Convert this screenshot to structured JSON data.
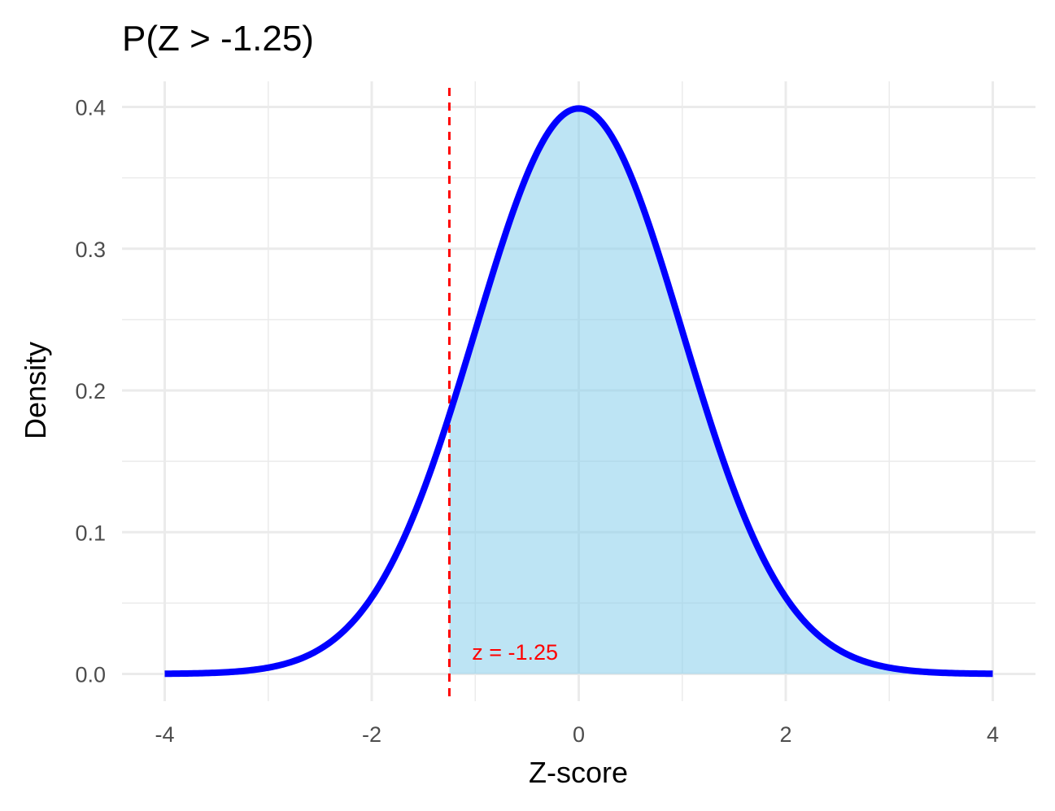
{
  "chart_data": {
    "type": "area",
    "title": "P(Z > -1.25)",
    "xlabel": "Z-score",
    "ylabel": "Density",
    "xlim": [
      -4,
      4
    ],
    "ylim": [
      0,
      0.4
    ],
    "x_ticks": [
      "-4",
      "-2",
      "0",
      "2",
      "4"
    ],
    "y_ticks": [
      "0.0",
      "0.1",
      "0.2",
      "0.3",
      "0.4"
    ],
    "grid": true,
    "legend": "none",
    "series": [
      {
        "curve": "standard normal density",
        "x": [
          -4.0,
          -3.5,
          -3.0,
          -2.5,
          -2.0,
          -1.5,
          -1.25,
          -1.0,
          -0.5,
          0.0,
          0.5,
          1.0,
          1.5,
          2.0,
          2.5,
          3.0,
          3.5,
          4.0
        ],
        "y": [
          0.0001,
          0.0009,
          0.0044,
          0.0175,
          0.054,
          0.1295,
          0.1826,
          0.242,
          0.3521,
          0.3989,
          0.3521,
          0.242,
          0.1295,
          0.054,
          0.0175,
          0.0044,
          0.0009,
          0.0001
        ],
        "color": "#0000ff"
      }
    ],
    "shaded_region": {
      "from": -1.25,
      "to": 4,
      "color": "#87ceeb"
    },
    "reference_line": {
      "x": -1.25,
      "style": "dashed",
      "color": "#ff0000"
    },
    "annotation": {
      "text": "z = -1.25",
      "x": -1.0,
      "y": 0.018,
      "color": "#ff0000"
    }
  },
  "colors": {
    "curve": "#0000ff",
    "fill": "#87ceeb",
    "reference": "#ff0000",
    "grid": "#ebebeb"
  }
}
